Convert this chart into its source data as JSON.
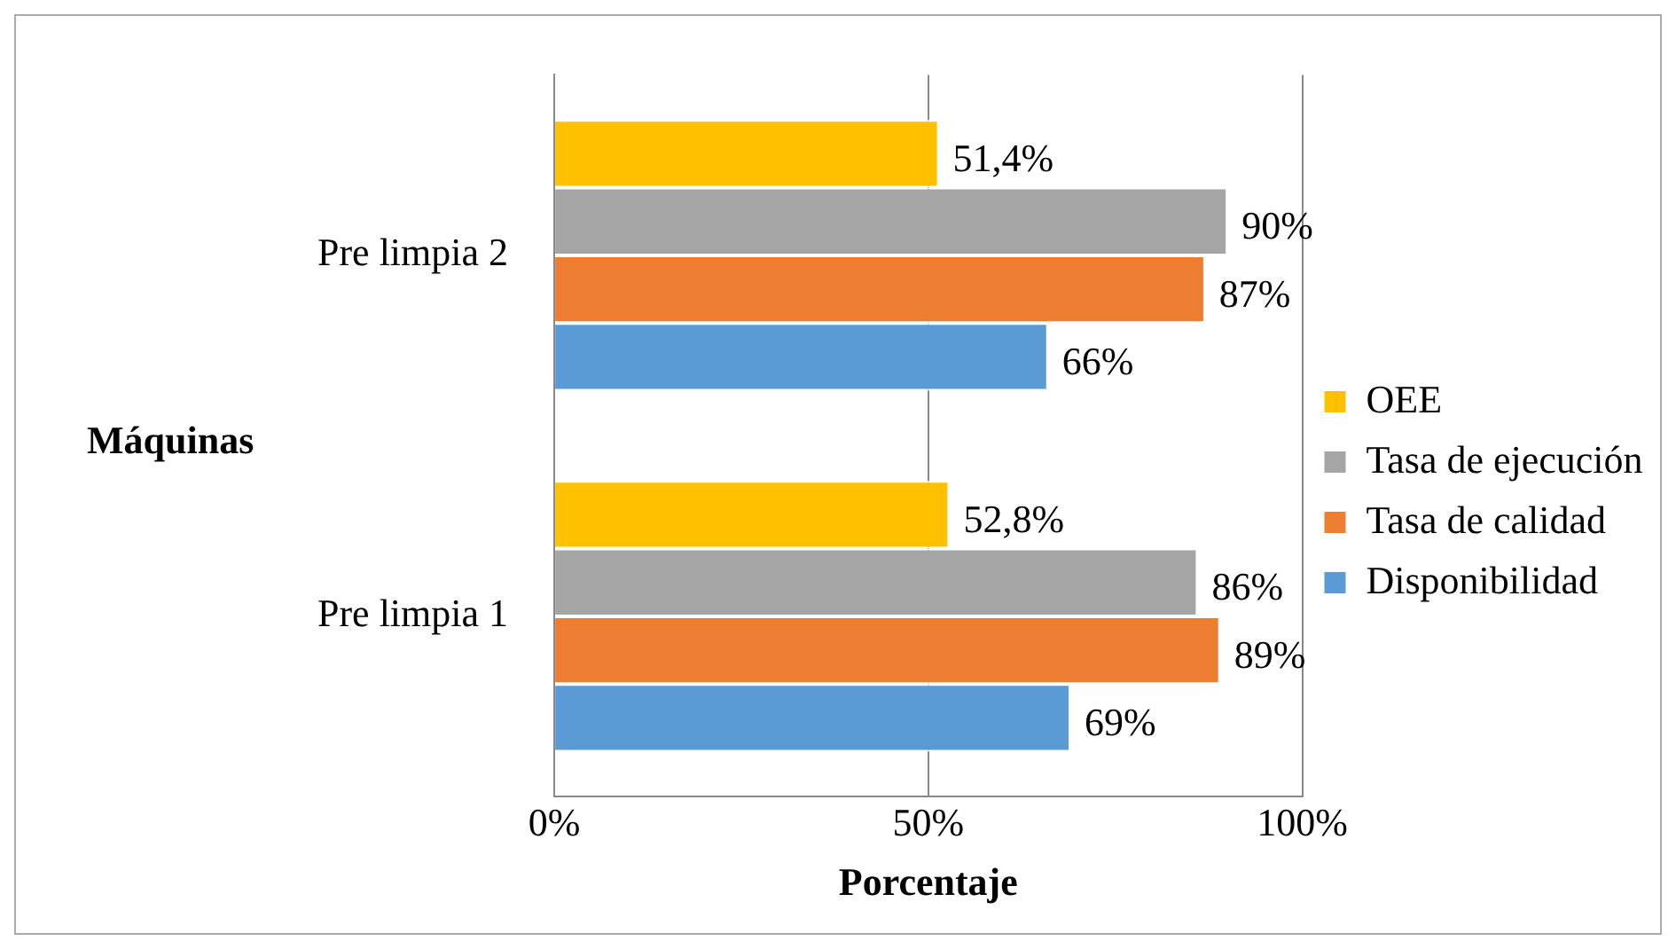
{
  "chart_data": {
    "type": "bar",
    "orientation": "horizontal",
    "xlabel": "Porcentaje",
    "ylabel": "Máquinas",
    "categories": [
      "Pre limpia 2",
      "Pre limpia 1"
    ],
    "series": [
      {
        "name": "OEE",
        "color": "#ffc000",
        "values": [
          51.4,
          52.8
        ],
        "value_labels": [
          "51,4%",
          "52,8%"
        ]
      },
      {
        "name": "Tasa de ejecución",
        "color": "#a5a5a5",
        "values": [
          90,
          86
        ],
        "value_labels": [
          "90%",
          "86%"
        ]
      },
      {
        "name": "Tasa de calidad",
        "color": "#ed7d31",
        "values": [
          87,
          89
        ],
        "value_labels": [
          "87%",
          "89%"
        ]
      },
      {
        "name": "Disponibilidad",
        "color": "#5b9bd5",
        "values": [
          66,
          69
        ],
        "value_labels": [
          "66%",
          "69%"
        ]
      }
    ],
    "xlim": [
      0,
      100
    ],
    "xticks": [
      {
        "value": 0,
        "label": "0%"
      },
      {
        "value": 50,
        "label": "50%"
      },
      {
        "value": 100,
        "label": "100%"
      }
    ],
    "grid": "x",
    "legend": "right"
  }
}
